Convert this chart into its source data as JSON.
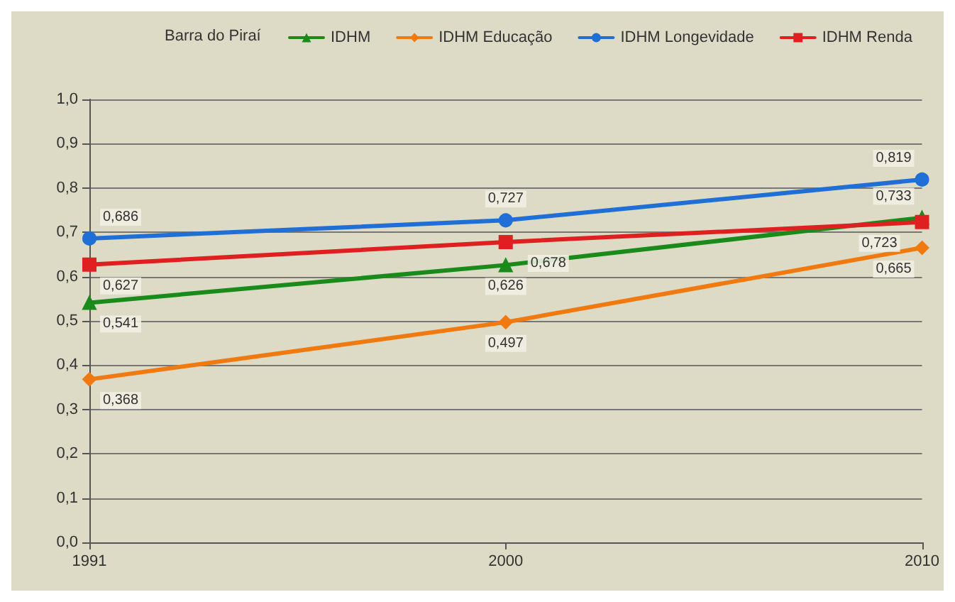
{
  "chart_data": {
    "type": "line",
    "legend_title": "Barra do Piraí",
    "categories": [
      "1991",
      "2000",
      "2010"
    ],
    "series": [
      {
        "name": "IDHM",
        "color": "#1a8a1a",
        "marker": "triangle",
        "values": [
          0.541,
          0.626,
          0.733
        ],
        "value_labels": [
          "0,541",
          "0,626",
          "0,733"
        ]
      },
      {
        "name": "IDHM Educação",
        "color": "#f07a10",
        "marker": "diamond",
        "values": [
          0.368,
          0.497,
          0.665
        ],
        "value_labels": [
          "0,368",
          "0,497",
          "0,665"
        ]
      },
      {
        "name": "IDHM Longevidade",
        "color": "#1f6fd6",
        "marker": "circle",
        "values": [
          0.686,
          0.727,
          0.819
        ],
        "value_labels": [
          "0,686",
          "0,727",
          "0,819"
        ]
      },
      {
        "name": "IDHM Renda",
        "color": "#e02020",
        "marker": "square",
        "values": [
          0.627,
          0.678,
          0.723
        ],
        "value_labels": [
          "0,627",
          "0,678",
          "0,723"
        ]
      }
    ],
    "ylim": [
      0,
      1
    ],
    "yticks": [
      {
        "value": 0,
        "label": "0,0"
      },
      {
        "value": 0.1,
        "label": "0,1"
      },
      {
        "value": 0.2,
        "label": "0,2"
      },
      {
        "value": 0.3,
        "label": "0,3"
      },
      {
        "value": 0.4,
        "label": "0,4"
      },
      {
        "value": 0.5,
        "label": "0,5"
      },
      {
        "value": 0.6,
        "label": "0,6"
      },
      {
        "value": 0.7,
        "label": "0,7"
      },
      {
        "value": 0.8,
        "label": "0,8"
      },
      {
        "value": 0.9,
        "label": "0,9"
      },
      {
        "value": 1,
        "label": "1,0"
      }
    ],
    "grid": "y",
    "legend": "top"
  }
}
